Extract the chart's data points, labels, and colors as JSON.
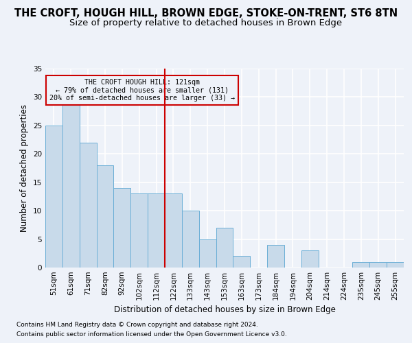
{
  "title": "THE CROFT, HOUGH HILL, BROWN EDGE, STOKE-ON-TRENT, ST6 8TN",
  "subtitle": "Size of property relative to detached houses in Brown Edge",
  "xlabel": "Distribution of detached houses by size in Brown Edge",
  "ylabel": "Number of detached properties",
  "footnote1": "Contains HM Land Registry data © Crown copyright and database right 2024.",
  "footnote2": "Contains public sector information licensed under the Open Government Licence v3.0.",
  "categories": [
    "51sqm",
    "61sqm",
    "71sqm",
    "82sqm",
    "92sqm",
    "102sqm",
    "112sqm",
    "122sqm",
    "133sqm",
    "143sqm",
    "153sqm",
    "163sqm",
    "173sqm",
    "184sqm",
    "194sqm",
    "204sqm",
    "214sqm",
    "224sqm",
    "235sqm",
    "245sqm",
    "255sqm"
  ],
  "values": [
    25,
    29,
    22,
    18,
    14,
    13,
    13,
    13,
    10,
    5,
    7,
    2,
    0,
    4,
    0,
    3,
    0,
    0,
    1,
    1,
    1
  ],
  "bar_color": "#c8daea",
  "bar_edge_color": "#6aaed6",
  "marker_line_color": "#cc0000",
  "annotation_line1": "THE CROFT HOUGH HILL: 121sqm",
  "annotation_line2": "← 79% of detached houses are smaller (131)",
  "annotation_line3": "20% of semi-detached houses are larger (33) →",
  "ylim": [
    0,
    35
  ],
  "yticks": [
    0,
    5,
    10,
    15,
    20,
    25,
    30,
    35
  ],
  "background_color": "#eef2f9",
  "grid_color": "#ffffff",
  "title_fontsize": 10.5,
  "subtitle_fontsize": 9.5,
  "axis_label_fontsize": 8.5,
  "tick_fontsize": 7.5,
  "footnote_fontsize": 6.5
}
